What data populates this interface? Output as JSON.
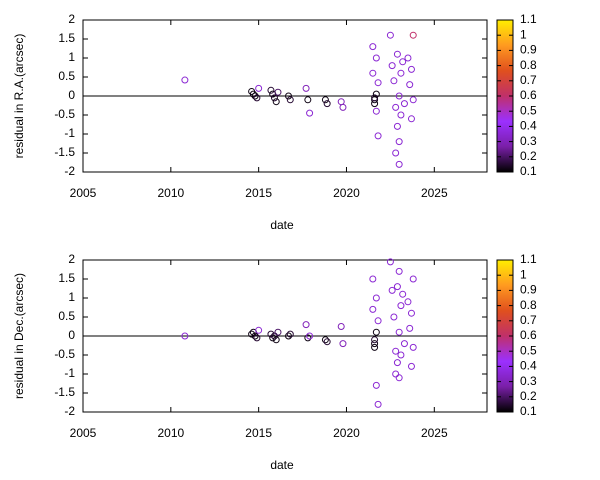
{
  "chart_data": [
    {
      "type": "scatter",
      "ylabel": "residual in R.A.(arcsec)",
      "xlabel": "date",
      "x": [
        2010.8,
        2014.6,
        2014.7,
        2014.8,
        2014.9,
        2015.0,
        2015.7,
        2015.8,
        2015.9,
        2016.0,
        2016.1,
        2016.7,
        2016.8,
        2017.7,
        2017.8,
        2017.9,
        2018.8,
        2018.9,
        2019.7,
        2019.8,
        2021.5,
        2021.5,
        2021.6,
        2021.6,
        2021.6,
        2021.7,
        2021.7,
        2021.7,
        2021.8,
        2021.8,
        2022.5,
        2022.6,
        2022.7,
        2022.8,
        2022.9,
        2022.9,
        2023.0,
        2023.0,
        2023.1,
        2023.1,
        2023.2,
        2023.3,
        2023.5,
        2023.6,
        2023.7,
        2023.7,
        2023.8,
        2023.8,
        2022.8,
        2023.0
      ],
      "y": [
        0.42,
        0.12,
        0.05,
        0.0,
        -0.05,
        0.2,
        0.15,
        0.05,
        -0.05,
        -0.15,
        0.1,
        0.0,
        -0.1,
        0.2,
        -0.1,
        -0.45,
        -0.1,
        -0.2,
        -0.15,
        -0.3,
        1.3,
        0.6,
        -0.1,
        -0.2,
        -0.05,
        0.05,
        -0.4,
        1.0,
        -1.05,
        0.35,
        1.6,
        0.8,
        0.4,
        -0.3,
        -0.8,
        1.1,
        0.0,
        -1.2,
        0.6,
        -0.5,
        0.9,
        -0.2,
        1.0,
        0.3,
        -0.6,
        0.7,
        1.6,
        -0.1,
        -1.5,
        -1.8
      ],
      "c": [
        0.35,
        0.12,
        0.12,
        0.12,
        0.15,
        0.35,
        0.15,
        0.12,
        0.15,
        0.12,
        0.2,
        0.12,
        0.15,
        0.3,
        0.12,
        0.35,
        0.12,
        0.15,
        0.3,
        0.3,
        0.35,
        0.35,
        0.12,
        0.12,
        0.15,
        0.12,
        0.35,
        0.35,
        0.35,
        0.35,
        0.35,
        0.35,
        0.35,
        0.35,
        0.35,
        0.35,
        0.35,
        0.35,
        0.35,
        0.35,
        0.35,
        0.35,
        0.35,
        0.35,
        0.35,
        0.35,
        0.6,
        0.35,
        0.35,
        0.35
      ],
      "xlim": [
        2005,
        2028
      ],
      "xticks": [
        2005,
        2010,
        2015,
        2020,
        2025
      ],
      "ylim": [
        -2,
        2
      ],
      "yticks": [
        -2,
        -1.5,
        -1,
        -0.5,
        0,
        0.5,
        1,
        1.5,
        2
      ],
      "zero_line": true,
      "colorbar": {
        "lim": [
          0.1,
          1.1
        ],
        "ticks": [
          0.1,
          0.2,
          0.3,
          0.4,
          0.5,
          0.6,
          0.7,
          0.8,
          0.9,
          1,
          1.1
        ],
        "palette": [
          "#000000",
          "#7a1fa8",
          "#9b30ff",
          "#c0306a",
          "#e0501e",
          "#ff9a20",
          "#ffee00"
        ]
      }
    },
    {
      "type": "scatter",
      "ylabel": "residual in Dec.(arcsec)",
      "xlabel": "date",
      "x": [
        2010.8,
        2014.6,
        2014.7,
        2014.8,
        2014.9,
        2015.0,
        2015.7,
        2015.8,
        2015.9,
        2016.0,
        2016.1,
        2016.7,
        2016.8,
        2017.7,
        2017.8,
        2017.9,
        2018.8,
        2018.9,
        2019.7,
        2019.8,
        2021.5,
        2021.5,
        2021.6,
        2021.6,
        2021.6,
        2021.7,
        2021.7,
        2021.7,
        2021.8,
        2021.8,
        2022.5,
        2022.6,
        2022.7,
        2022.8,
        2022.9,
        2022.9,
        2023.0,
        2023.0,
        2023.1,
        2023.1,
        2023.2,
        2023.3,
        2023.5,
        2023.6,
        2023.7,
        2023.7,
        2023.8,
        2023.8,
        2022.8,
        2023.0
      ],
      "y": [
        0.0,
        0.05,
        0.1,
        0.0,
        -0.05,
        0.15,
        0.05,
        -0.05,
        0.0,
        -0.1,
        0.1,
        0.0,
        0.05,
        0.3,
        -0.05,
        0.0,
        -0.1,
        -0.15,
        0.25,
        -0.2,
        1.5,
        0.7,
        -0.2,
        -0.3,
        -0.1,
        0.1,
        -1.3,
        1.0,
        -1.8,
        0.4,
        1.95,
        1.2,
        0.5,
        -0.4,
        -0.7,
        1.3,
        0.1,
        -1.1,
        0.8,
        -0.5,
        1.1,
        -0.2,
        0.9,
        0.2,
        -0.8,
        0.6,
        1.5,
        -0.3,
        -1.0,
        1.7
      ],
      "c": [
        0.35,
        0.12,
        0.12,
        0.12,
        0.15,
        0.35,
        0.15,
        0.12,
        0.15,
        0.12,
        0.2,
        0.12,
        0.15,
        0.3,
        0.12,
        0.35,
        0.12,
        0.15,
        0.3,
        0.3,
        0.35,
        0.35,
        0.12,
        0.12,
        0.15,
        0.12,
        0.35,
        0.35,
        0.35,
        0.35,
        0.35,
        0.35,
        0.35,
        0.35,
        0.35,
        0.35,
        0.35,
        0.35,
        0.35,
        0.35,
        0.35,
        0.35,
        0.35,
        0.35,
        0.35,
        0.35,
        0.35,
        0.35,
        0.35,
        0.35
      ],
      "xlim": [
        2005,
        2028
      ],
      "xticks": [
        2005,
        2010,
        2015,
        2020,
        2025
      ],
      "ylim": [
        -2,
        2
      ],
      "yticks": [
        -2,
        -1.5,
        -1,
        -0.5,
        0,
        0.5,
        1,
        1.5,
        2
      ],
      "zero_line": true,
      "colorbar": {
        "lim": [
          0.1,
          1.1
        ],
        "ticks": [
          0.1,
          0.2,
          0.3,
          0.4,
          0.5,
          0.6,
          0.7,
          0.8,
          0.9,
          1,
          1.1
        ],
        "palette": [
          "#000000",
          "#7a1fa8",
          "#9b30ff",
          "#c0306a",
          "#e0501e",
          "#ff9a20",
          "#ffee00"
        ]
      }
    }
  ]
}
